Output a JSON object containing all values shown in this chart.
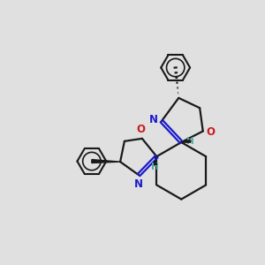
{
  "background_color": "#e0e0e0",
  "bond_color": "#1a1a1a",
  "N_color": "#1a1acc",
  "O_color": "#cc1a1a",
  "H_color": "#50a8a0",
  "line_width": 1.6,
  "fig_width": 3.0,
  "fig_height": 3.0,
  "dpi": 100,
  "xlim": [
    0,
    10
  ],
  "ylim": [
    0,
    10
  ]
}
